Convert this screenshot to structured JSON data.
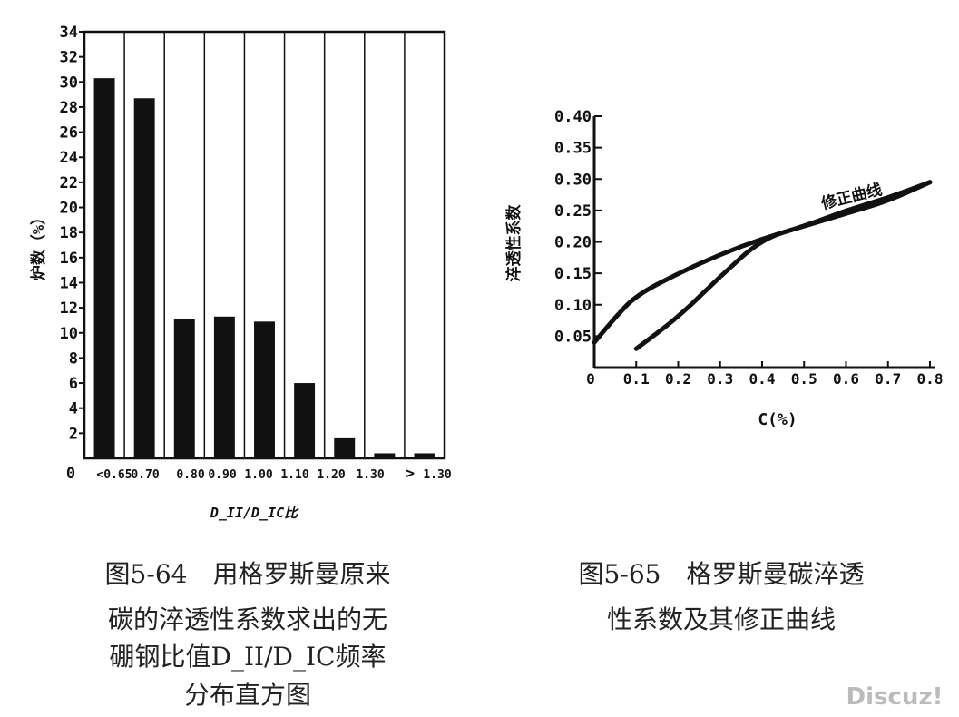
{
  "chart_data": [
    {
      "type": "bar",
      "title": "",
      "ylabel": "炉数（%）",
      "xlabel": "D_II/D_IC比",
      "ylim": [
        0,
        34
      ],
      "ytick_labels": [
        "2",
        "4",
        "6",
        "8",
        "10",
        "12",
        "14",
        "16",
        "18",
        "20",
        "22",
        "24",
        "26",
        "28",
        "30",
        "32",
        "34"
      ],
      "xtick_labels": [
        "0",
        "<0.65",
        "0.70",
        "0.80",
        "0.90",
        "1.00",
        "1.10",
        "1.20",
        "1.30",
        ">",
        "1.30"
      ],
      "categories": [
        "<0.65",
        "0.70",
        "0.80",
        "0.90",
        "1.00",
        "1.10",
        "1.20",
        "1.30",
        ">1.30"
      ],
      "values": [
        30.3,
        28.7,
        11.1,
        11.3,
        10.9,
        6.0,
        1.6,
        0.4,
        0.4
      ],
      "caption": [
        "图5-64　用格罗斯曼原来",
        "碳的淬透性系数求出的无",
        "硼钢比值D_II/D_IC频率",
        "分布直方图"
      ]
    },
    {
      "type": "line",
      "title": "",
      "ylabel": "淬透性系数",
      "xlabel": "C(%)",
      "xlim": [
        0,
        0.8
      ],
      "ylim": [
        0,
        0.4
      ],
      "ytick_labels": [
        "0.05",
        "0.10",
        "0.15",
        "0.20",
        "0.25",
        "0.30",
        "0.35",
        "0.40"
      ],
      "xtick_labels": [
        "0",
        "0.1",
        "0.2",
        "0.3",
        "0.4",
        "0.5",
        "0.6",
        "0.7",
        "0.8"
      ],
      "series": [
        {
          "name": "",
          "x": [
            0,
            0.05,
            0.1,
            0.2,
            0.3,
            0.4,
            0.5,
            0.6,
            0.7,
            0.8
          ],
          "y": [
            0.04,
            0.08,
            0.115,
            0.15,
            0.18,
            0.205,
            0.225,
            0.245,
            0.265,
            0.295
          ]
        },
        {
          "name": "修正曲线",
          "x": [
            0.1,
            0.2,
            0.3,
            0.4,
            0.5,
            0.6,
            0.7,
            0.8
          ],
          "y": [
            0.03,
            0.08,
            0.145,
            0.205,
            0.225,
            0.25,
            0.27,
            0.295
          ]
        }
      ],
      "annotation": "修正曲线",
      "caption": [
        "图5-65　格罗斯曼碳淬透",
        "性系数及其修正曲线"
      ]
    }
  ],
  "watermark": "Discuz!"
}
